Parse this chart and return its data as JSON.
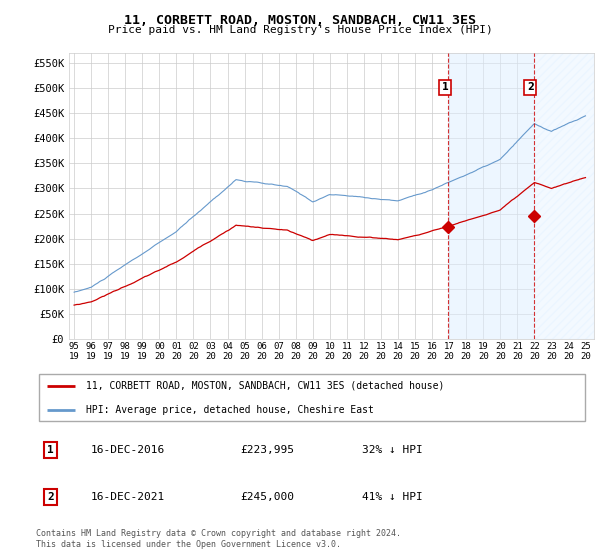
{
  "title": "11, CORBETT ROAD, MOSTON, SANDBACH, CW11 3ES",
  "subtitle": "Price paid vs. HM Land Registry's House Price Index (HPI)",
  "ylim": [
    0,
    570000
  ],
  "xlim_start": 1994.7,
  "xlim_end": 2025.5,
  "sale1_date": 2016.958,
  "sale1_price": 223995,
  "sale2_date": 2021.958,
  "sale2_price": 245000,
  "legend_line1": "11, CORBETT ROAD, MOSTON, SANDBACH, CW11 3ES (detached house)",
  "legend_line2": "HPI: Average price, detached house, Cheshire East",
  "footer": "Contains HM Land Registry data © Crown copyright and database right 2024.\nThis data is licensed under the Open Government Licence v3.0.",
  "red_color": "#cc0000",
  "blue_color": "#6699cc",
  "blue_fill_color": "#ddeeff",
  "background_color": "#ffffff",
  "grid_color": "#cccccc"
}
